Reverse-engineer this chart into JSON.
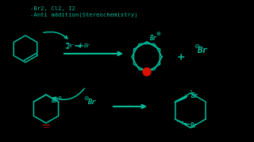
{
  "background_color": "#000000",
  "teal_color": "#00bb99",
  "red_color": "#dd1100",
  "title_lines": [
    "-Br2, Cl2, I2",
    "-Anti addition(Stereochemistry)"
  ],
  "title_fontsize": 5.2
}
